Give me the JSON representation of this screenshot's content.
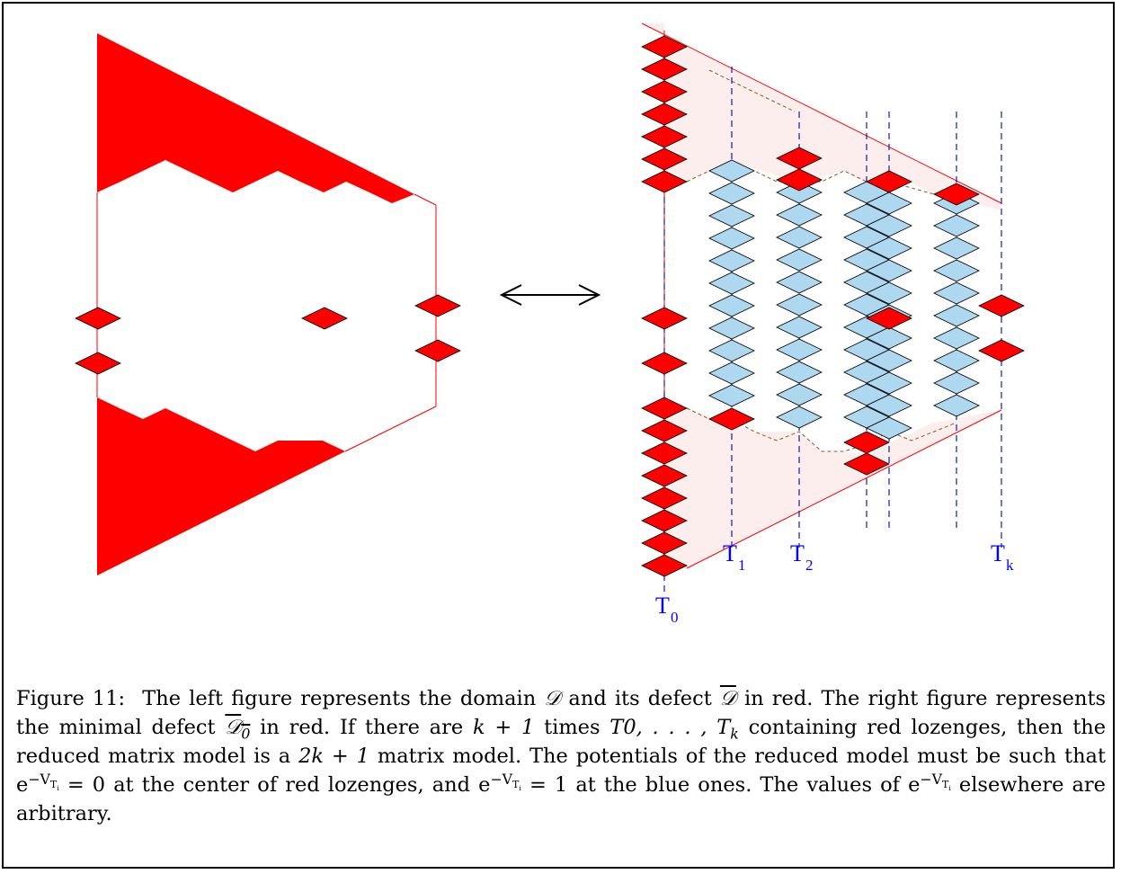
{
  "figure": {
    "arrow_symbol": "↔",
    "time_labels": {
      "t0": {
        "base": "T",
        "sub": "0"
      },
      "t1": {
        "base": "T",
        "sub": "1"
      },
      "t2": {
        "base": "T",
        "sub": "2"
      },
      "tk": {
        "base": "T",
        "sub": "k"
      }
    },
    "colors": {
      "defect": "#ff0000",
      "lozenge_blue": "#add8f0",
      "slice_line": "#1a1aa6",
      "label": "#0000ff",
      "tint": "#fdeeee",
      "dashed_boundary": "#8b5a2b"
    }
  },
  "caption": {
    "label": "Figure 11:",
    "text_1": "The left figure represents the domain",
    "sym_D": "𝒟",
    "text_2": "and its defect",
    "text_3": "in red. The right figure represents the minimal defect",
    "sub_0": "0",
    "text_4": "in red. If there are",
    "k_plus_1": "k + 1",
    "text_5": "times",
    "times_list": "T",
    "times_range": "0, . . . , T",
    "times_sub_k": "k",
    "text_6": "containing red lozenges, then the reduced matrix model is a",
    "two_k_plus_1": "2k + 1",
    "text_7": "matrix model. The potentials of the reduced model must be such that",
    "exp_e": "e",
    "exp_sup": "−V",
    "exp_sub_T": "T",
    "exp_sub_i": "i",
    "eq_0": "= 0",
    "text_8": "at the center of red lozenges, and",
    "eq_1": "= 1",
    "text_9": "at the blue ones. The values of",
    "text_10": "elsewhere are arbitrary."
  }
}
